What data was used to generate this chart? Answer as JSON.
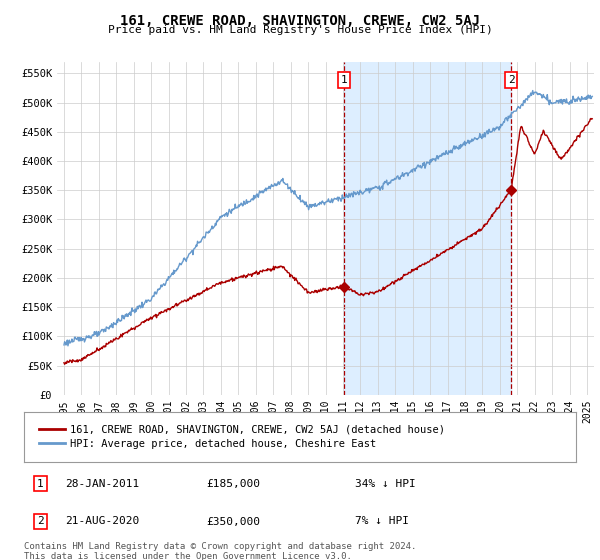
{
  "title": "161, CREWE ROAD, SHAVINGTON, CREWE, CW2 5AJ",
  "subtitle": "Price paid vs. HM Land Registry's House Price Index (HPI)",
  "ylabel_ticks": [
    "£0",
    "£50K",
    "£100K",
    "£150K",
    "£200K",
    "£250K",
    "£300K",
    "£350K",
    "£400K",
    "£450K",
    "£500K",
    "£550K"
  ],
  "ytick_values": [
    0,
    50000,
    100000,
    150000,
    200000,
    250000,
    300000,
    350000,
    400000,
    450000,
    500000,
    550000
  ],
  "ylim": [
    0,
    570000
  ],
  "hpi_color": "#6699cc",
  "price_color": "#aa0000",
  "shade_color": "#ddeeff",
  "marker1_date": 2011.08,
  "marker1_price": 185000,
  "marker2_date": 2020.65,
  "marker2_price": 350000,
  "legend_line1": "161, CREWE ROAD, SHAVINGTON, CREWE, CW2 5AJ (detached house)",
  "legend_line2": "HPI: Average price, detached house, Cheshire East",
  "table_row1": [
    "1",
    "28-JAN-2011",
    "£185,000",
    "34% ↓ HPI"
  ],
  "table_row2": [
    "2",
    "21-AUG-2020",
    "£350,000",
    "7% ↓ HPI"
  ],
  "footnote": "Contains HM Land Registry data © Crown copyright and database right 2024.\nThis data is licensed under the Open Government Licence v3.0.",
  "background_color": "#ffffff",
  "grid_color": "#cccccc",
  "xlim_start": 1994.6,
  "xlim_end": 2025.4
}
